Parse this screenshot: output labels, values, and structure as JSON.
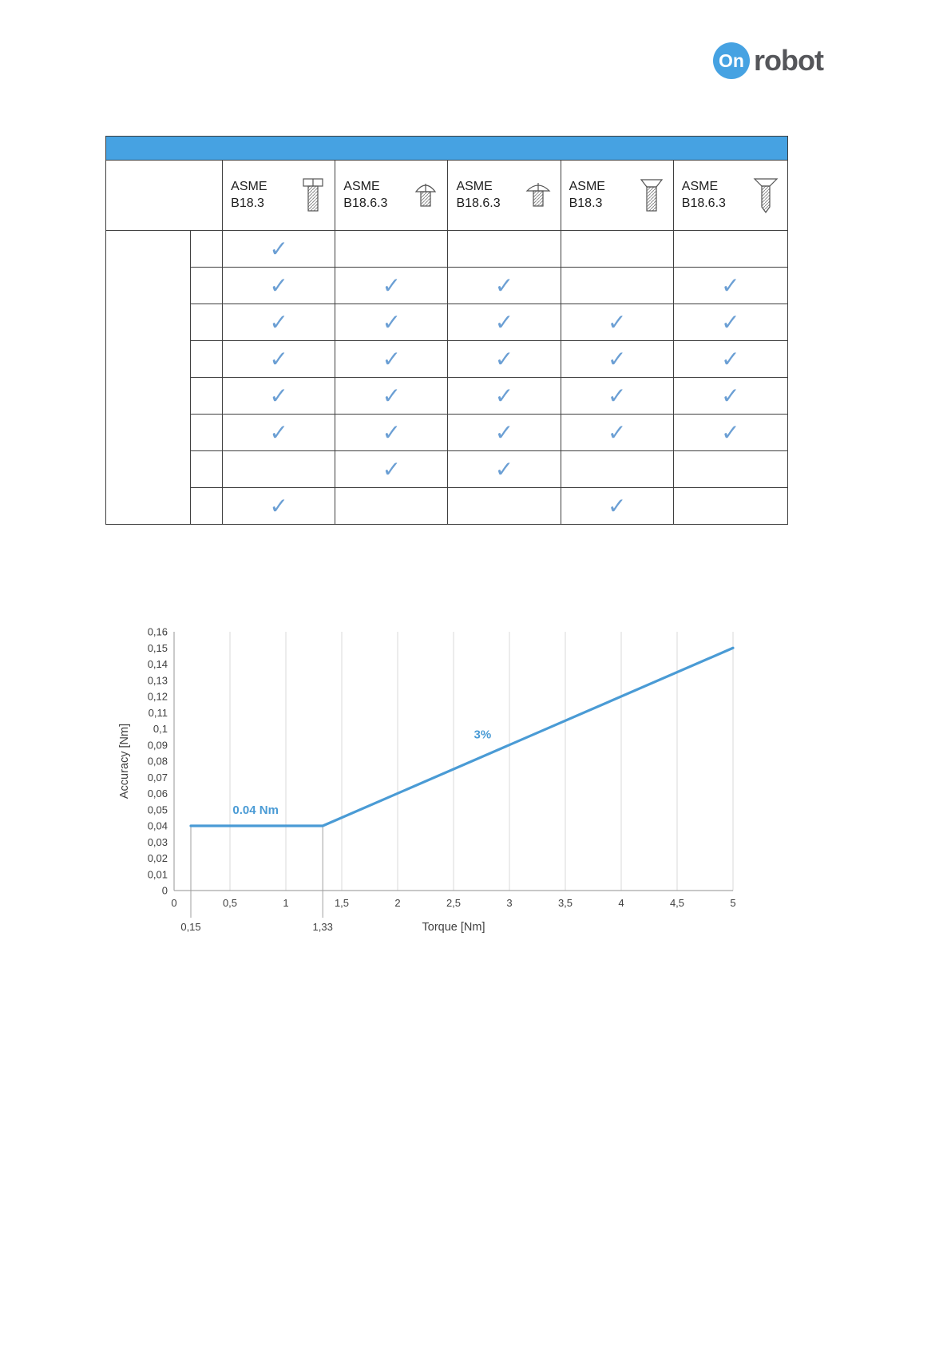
{
  "page": {
    "logo": {
      "on": "On",
      "robot": "robot"
    }
  },
  "colors": {
    "accent": "#46a2e2",
    "check": "#6b9fd4",
    "grid": "#d9d9d9",
    "axis": "#a6a6a6",
    "marker_line": "#9f9f9f",
    "text": "#3f3f3f",
    "chart_line": "#4a9bd5"
  },
  "table": {
    "title_bar_text": "",
    "checkmark": "✓",
    "columns": [
      {
        "label_line1": "ASME",
        "label_line2": "B18.3",
        "icon": "pan-head-screw-icon"
      },
      {
        "label_line1": "ASME",
        "label_line2": "B18.6.3",
        "icon": "round-head-screw-icon"
      },
      {
        "label_line1": "ASME",
        "label_line2": "B18.6.3",
        "icon": "truss-head-screw-icon"
      },
      {
        "label_line1": "ASME",
        "label_line2": "B18.3",
        "icon": "flat-head-screw-icon"
      },
      {
        "label_line1": "ASME",
        "label_line2": "B18.6.3",
        "icon": "countersunk-screw-icon"
      }
    ],
    "rows": [
      {
        "label": "",
        "checks": [
          true,
          false,
          false,
          false,
          false
        ]
      },
      {
        "label": "",
        "checks": [
          true,
          true,
          true,
          false,
          true
        ]
      },
      {
        "label": "",
        "checks": [
          true,
          true,
          true,
          true,
          true
        ]
      },
      {
        "label": "",
        "checks": [
          true,
          true,
          true,
          true,
          true
        ]
      },
      {
        "label": "",
        "checks": [
          true,
          true,
          true,
          true,
          true
        ]
      },
      {
        "label": "",
        "checks": [
          true,
          true,
          true,
          true,
          true
        ]
      },
      {
        "label": "",
        "checks": [
          false,
          true,
          true,
          false,
          false
        ]
      },
      {
        "label": "",
        "checks": [
          true,
          false,
          false,
          true,
          false
        ]
      }
    ]
  },
  "chart_data": {
    "type": "line",
    "title": "",
    "xlabel": "Torque [Nm]",
    "ylabel": "Accuracy [Nm]",
    "xlim": [
      0,
      5
    ],
    "ylim": [
      0,
      0.16
    ],
    "grid": "vertical",
    "x_tick_values": [
      0,
      0.5,
      1,
      1.5,
      2,
      2.5,
      3,
      3.5,
      4,
      4.5,
      5
    ],
    "x_ticks": [
      "0",
      "0,5",
      "1",
      "1,5",
      "2",
      "2,5",
      "3",
      "3,5",
      "4",
      "4,5",
      "5"
    ],
    "y_tick_values": [
      0,
      0.01,
      0.02,
      0.03,
      0.04,
      0.05,
      0.06,
      0.07,
      0.08,
      0.09,
      0.1,
      0.11,
      0.12,
      0.13,
      0.14,
      0.15,
      0.16
    ],
    "y_ticks": [
      "0",
      "0,01",
      "0,02",
      "0,03",
      "0,04",
      "0,05",
      "0,06",
      "0,07",
      "0,08",
      "0,09",
      "0,1",
      "0,11",
      "0,12",
      "0,13",
      "0,14",
      "0,15",
      "0,16"
    ],
    "x_marker_values": [
      0.15,
      1.33
    ],
    "x_marker_labels": [
      "0,15",
      "1,33"
    ],
    "series": [
      {
        "name": "accuracy",
        "color": "#4a9bd5",
        "points": [
          [
            0.15,
            0.04
          ],
          [
            1.33,
            0.04
          ],
          [
            5,
            0.15
          ]
        ]
      }
    ],
    "annotations": [
      {
        "text": "0.04 Nm",
        "x": 0.73,
        "y": 0.0475
      },
      {
        "text": "3%",
        "x": 2.76,
        "y": 0.094
      }
    ]
  }
}
